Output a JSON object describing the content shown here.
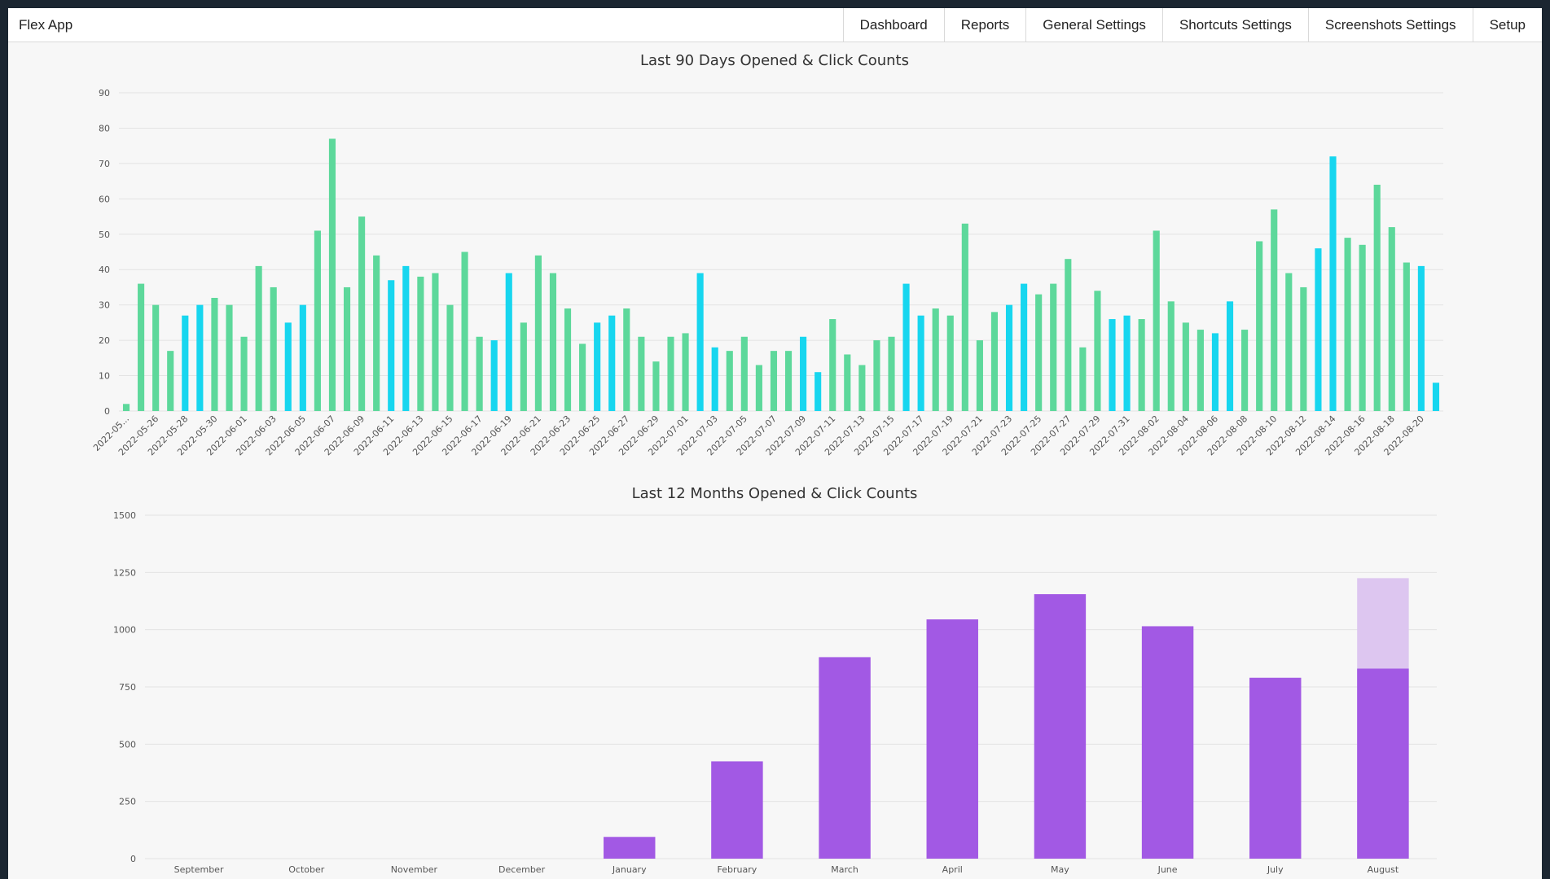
{
  "app": {
    "title": "Flex App",
    "nav": [
      "Dashboard",
      "Reports",
      "General Settings",
      "Shortcuts Settings",
      "Screenshots Settings",
      "Setup"
    ]
  },
  "chart_data": [
    {
      "type": "bar",
      "title": "Last 90 Days Opened & Click Counts",
      "ylim": [
        0,
        90
      ],
      "yticks": [
        0,
        10,
        20,
        30,
        40,
        50,
        60,
        70,
        80,
        90
      ],
      "grid": true,
      "x_labels": [
        "2022-05...",
        "2022-05-26",
        "2022-05-28",
        "2022-05-30",
        "2022-06-01",
        "2022-06-03",
        "2022-06-05",
        "2022-06-07",
        "2022-06-09",
        "2022-06-11",
        "2022-06-13",
        "2022-06-15",
        "2022-06-17",
        "2022-06-19",
        "2022-06-21",
        "2022-06-23",
        "2022-06-25",
        "2022-06-27",
        "2022-06-29",
        "2022-07-01",
        "2022-07-03",
        "2022-07-05",
        "2022-07-07",
        "2022-07-09",
        "2022-07-11",
        "2022-07-13",
        "2022-07-15",
        "2022-07-17",
        "2022-07-19",
        "2022-07-21",
        "2022-07-23",
        "2022-07-25",
        "2022-07-27",
        "2022-07-29",
        "2022-07-31",
        "2022-08-02",
        "2022-08-04",
        "2022-08-06",
        "2022-08-08",
        "2022-08-10",
        "2022-08-12",
        "2022-08-14",
        "2022-08-16",
        "2022-08-18",
        "2022-08-20"
      ],
      "values": [
        2,
        36,
        30,
        17,
        27,
        30,
        32,
        30,
        21,
        41,
        35,
        25,
        30,
        51,
        77,
        35,
        55,
        44,
        37,
        41,
        38,
        39,
        30,
        45,
        21,
        20,
        39,
        25,
        44,
        39,
        29,
        19,
        25,
        27,
        29,
        21,
        14,
        21,
        22,
        39,
        18,
        17,
        21,
        13,
        17,
        17,
        21,
        11,
        26,
        16,
        13,
        20,
        21,
        36,
        27,
        29,
        27,
        53,
        20,
        28,
        30,
        36,
        33,
        36,
        43,
        18,
        34,
        26,
        27,
        26,
        51,
        31,
        25,
        23,
        22,
        31,
        23,
        48,
        57,
        39,
        35,
        46,
        72,
        49,
        47,
        64,
        52,
        42,
        41,
        8
      ],
      "highlight": [
        4,
        5,
        11,
        12,
        18,
        19,
        25,
        26,
        32,
        33,
        39,
        40,
        46,
        47,
        53,
        54,
        60,
        61,
        67,
        68,
        74,
        75,
        81,
        82,
        88,
        89
      ],
      "colors": {
        "default": "#5dd89b",
        "highlight": "#17d6ef"
      }
    },
    {
      "type": "bar",
      "title": "Last 12 Months Opened & Click Counts",
      "ylim": [
        0,
        1500
      ],
      "yticks": [
        0,
        250,
        500,
        750,
        1000,
        1250,
        1500
      ],
      "grid": true,
      "categories": [
        "September",
        "October",
        "November",
        "December",
        "January",
        "February",
        "March",
        "April",
        "May",
        "June",
        "July",
        "August"
      ],
      "values": [
        0,
        0,
        0,
        0,
        95,
        425,
        880,
        1045,
        1155,
        1015,
        790,
        830
      ],
      "projected": [
        null,
        null,
        null,
        null,
        null,
        null,
        null,
        null,
        null,
        null,
        null,
        1225
      ],
      "colors": {
        "bar": "#a259e4",
        "projected": "#ddc6f0"
      }
    }
  ]
}
